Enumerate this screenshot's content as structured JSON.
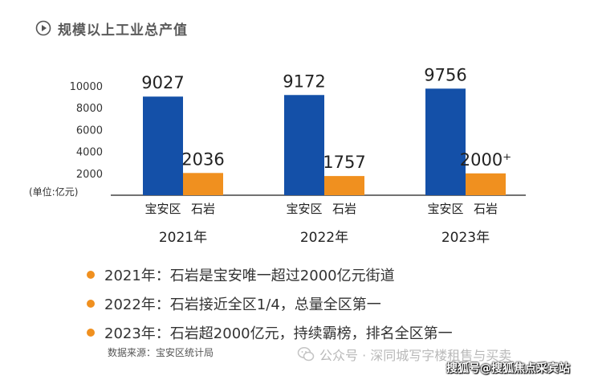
{
  "header": {
    "title": "规模以上工业总产值"
  },
  "colors": {
    "baoan": "#1450a8",
    "shiyan": "#f0901f",
    "axis": "#444444"
  },
  "chart_data": {
    "type": "bar",
    "title": "规模以上工业总产值",
    "ylabel": "(单位:亿元)",
    "ylim": [
      0,
      10000
    ],
    "yticks": [
      2000,
      4000,
      6000,
      8000,
      10000
    ],
    "categories": [
      "2021年",
      "2022年",
      "2023年"
    ],
    "series": [
      {
        "name": "宝安区",
        "values": [
          9027,
          9172,
          9756
        ],
        "labels": [
          "9027",
          "9172",
          "9756"
        ]
      },
      {
        "name": "石岩",
        "values": [
          2036,
          1757,
          2000
        ],
        "labels": [
          "2036",
          "1757",
          "2000⁺"
        ]
      }
    ]
  },
  "bullets": [
    "2021年：石岩是宝安唯一超过2000亿元街道",
    "2022年：石岩接近全区1/4，总量全区第一",
    "2023年：石岩超2000亿元，持续霸榜，排名全区第一"
  ],
  "source": "数据来源：宝安区统计局",
  "watermark": "公众号 · 深同城写字楼租售与买卖",
  "watermark2": "搜狐号@搜狐焦点采宾站"
}
